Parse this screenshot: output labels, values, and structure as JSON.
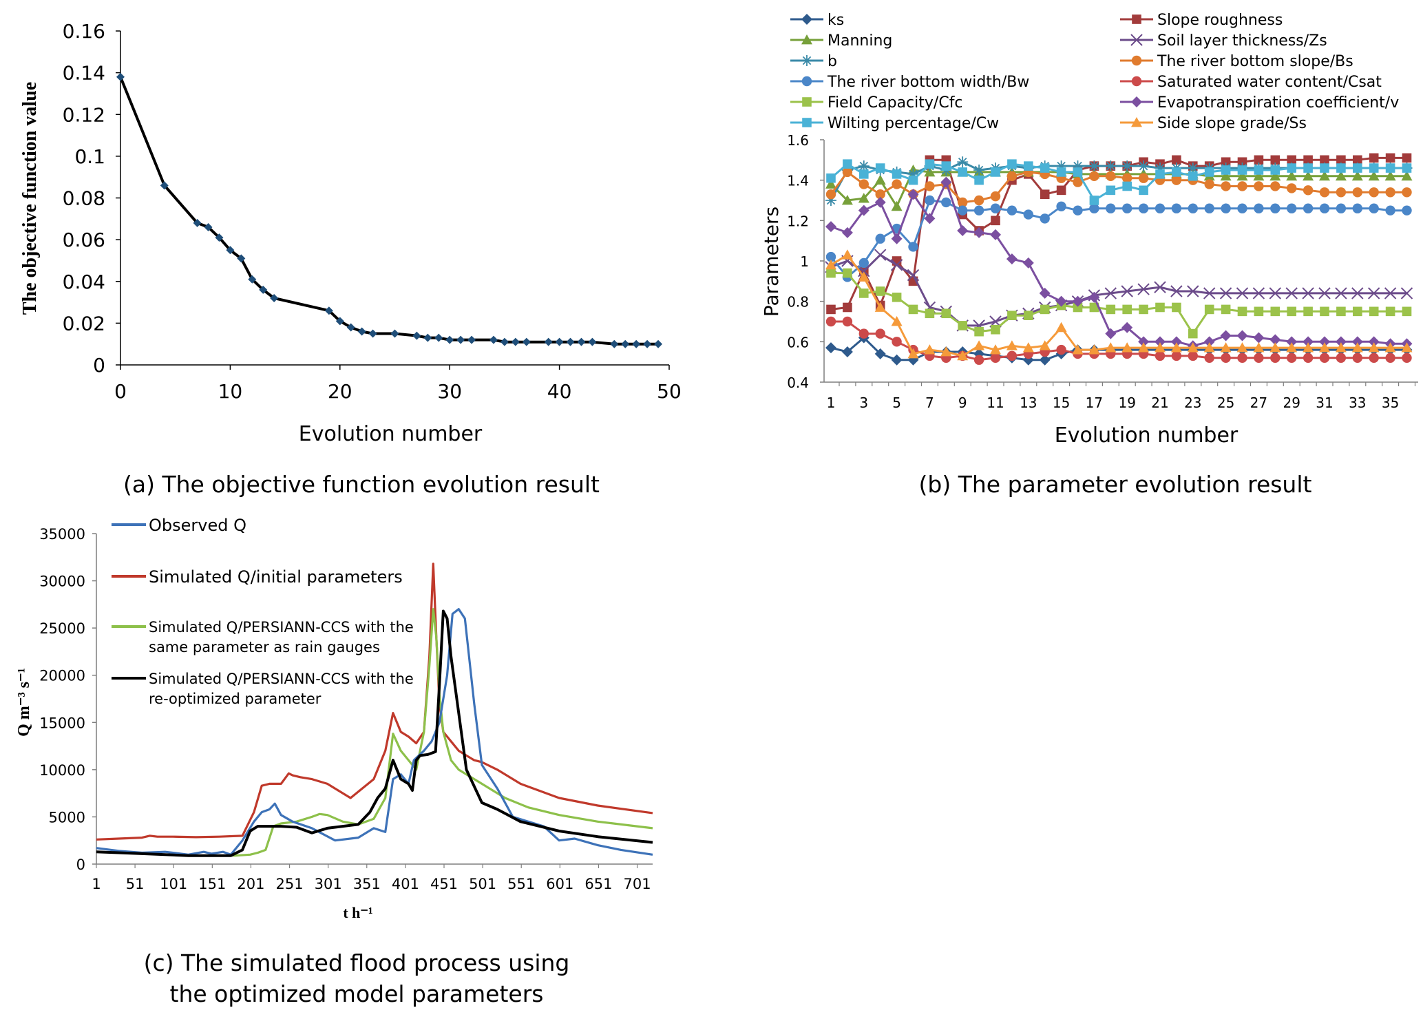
{
  "chart_data": [
    {
      "id": "a",
      "type": "line",
      "caption": "(a) The objective function evolution result",
      "title": "",
      "xlabel": "Evolution number",
      "ylabel": "The objective function value",
      "xlim": [
        0,
        50
      ],
      "ylim": [
        0,
        0.16
      ],
      "xticks": [
        "0",
        "10",
        "20",
        "30",
        "40",
        "50"
      ],
      "yticks": [
        "0",
        "0.02",
        "0.04",
        "0.06",
        "0.08",
        "0.1",
        "0.12",
        "0.14",
        "0.16"
      ],
      "color": "#000000",
      "marker_color": "#1f4e79",
      "series": [
        {
          "name": "Objective function",
          "x": [
            0,
            4,
            7,
            8,
            9,
            10,
            11,
            12,
            13,
            14,
            19,
            20,
            21,
            22,
            23,
            25,
            27,
            28,
            29,
            30,
            31,
            32,
            34,
            35,
            36,
            37,
            39,
            40,
            41,
            42,
            43,
            45,
            46,
            47,
            48,
            49
          ],
          "values": [
            0.138,
            0.086,
            0.068,
            0.066,
            0.061,
            0.055,
            0.051,
            0.041,
            0.036,
            0.032,
            0.026,
            0.021,
            0.018,
            0.016,
            0.015,
            0.015,
            0.014,
            0.013,
            0.013,
            0.012,
            0.012,
            0.012,
            0.012,
            0.011,
            0.011,
            0.011,
            0.011,
            0.011,
            0.011,
            0.011,
            0.011,
            0.01,
            0.01,
            0.01,
            0.01,
            0.01
          ]
        }
      ]
    },
    {
      "id": "b",
      "type": "line",
      "caption": "(b) The parameter evolution result",
      "title": "",
      "xlabel": "Evolution number",
      "ylabel": "Parameters",
      "xlim": [
        1,
        36
      ],
      "ylim": [
        0.4,
        1.6
      ],
      "xticks": [
        "1",
        "3",
        "5",
        "7",
        "9",
        "11",
        "13",
        "15",
        "17",
        "19",
        "21",
        "23",
        "25",
        "27",
        "29",
        "31",
        "33",
        "35"
      ],
      "yticks": [
        "0.4",
        "0.6",
        "0.8",
        "1",
        "1.2",
        "1.4",
        "1.6"
      ],
      "series": [
        {
          "name": "ks",
          "color": "#2e5a8c",
          "marker": "diamond",
          "values": [
            0.57,
            0.55,
            0.62,
            0.54,
            0.51,
            0.51,
            0.55,
            0.55,
            0.55,
            0.54,
            0.53,
            0.52,
            0.51,
            0.51,
            0.54,
            0.56,
            0.56,
            0.56,
            0.56,
            0.56,
            0.56,
            0.56,
            0.56,
            0.56,
            0.56,
            0.56,
            0.56,
            0.56,
            0.56,
            0.56,
            0.56,
            0.56,
            0.56,
            0.56,
            0.56,
            0.56
          ]
        },
        {
          "name": "Slope roughness",
          "color": "#a23b3b",
          "marker": "square",
          "values": [
            0.76,
            0.77,
            0.95,
            0.78,
            1.0,
            0.9,
            1.5,
            1.5,
            1.23,
            1.15,
            1.2,
            1.4,
            1.43,
            1.33,
            1.35,
            1.45,
            1.47,
            1.47,
            1.47,
            1.49,
            1.48,
            1.5,
            1.47,
            1.47,
            1.49,
            1.49,
            1.5,
            1.5,
            1.5,
            1.5,
            1.5,
            1.5,
            1.5,
            1.51,
            1.51,
            1.51
          ]
        },
        {
          "name": "Manning",
          "color": "#77a03a",
          "marker": "triangle",
          "values": [
            1.38,
            1.3,
            1.31,
            1.4,
            1.27,
            1.45,
            1.44,
            1.44,
            1.44,
            1.44,
            1.44,
            1.44,
            1.44,
            1.44,
            1.44,
            1.43,
            1.43,
            1.43,
            1.43,
            1.43,
            1.43,
            1.43,
            1.43,
            1.42,
            1.42,
            1.42,
            1.42,
            1.42,
            1.42,
            1.42,
            1.42,
            1.42,
            1.42,
            1.42,
            1.42,
            1.42
          ]
        },
        {
          "name": "Soil layer thickness/Zs",
          "color": "#6b4b8a",
          "marker": "x",
          "values": [
            0.97,
            1.0,
            0.95,
            1.03,
            0.98,
            0.93,
            0.77,
            0.75,
            0.68,
            0.68,
            0.7,
            0.73,
            0.74,
            0.77,
            0.78,
            0.8,
            0.83,
            0.84,
            0.85,
            0.86,
            0.87,
            0.85,
            0.85,
            0.84,
            0.84,
            0.84,
            0.84,
            0.84,
            0.84,
            0.84,
            0.84,
            0.84,
            0.84,
            0.84,
            0.84,
            0.84
          ]
        },
        {
          "name": "b",
          "color": "#3a8aa8",
          "marker": "star",
          "values": [
            1.3,
            1.45,
            1.47,
            1.45,
            1.44,
            1.43,
            1.47,
            1.45,
            1.49,
            1.45,
            1.46,
            1.47,
            1.46,
            1.47,
            1.47,
            1.47,
            1.47,
            1.47,
            1.47,
            1.47,
            1.46,
            1.46,
            1.46,
            1.46,
            1.46,
            1.46,
            1.46,
            1.46,
            1.46,
            1.46,
            1.46,
            1.46,
            1.46,
            1.46,
            1.46,
            1.46
          ]
        },
        {
          "name": "The river bottom slope/Bs",
          "color": "#e07b2e",
          "marker": "circle",
          "values": [
            1.33,
            1.44,
            1.38,
            1.33,
            1.38,
            1.33,
            1.37,
            1.38,
            1.29,
            1.3,
            1.32,
            1.42,
            1.44,
            1.43,
            1.41,
            1.39,
            1.42,
            1.42,
            1.41,
            1.41,
            1.4,
            1.4,
            1.4,
            1.38,
            1.37,
            1.37,
            1.37,
            1.37,
            1.36,
            1.35,
            1.34,
            1.34,
            1.34,
            1.34,
            1.34,
            1.34
          ]
        },
        {
          "name": "The river bottom width/Bw",
          "color": "#4a86c8",
          "marker": "circle",
          "values": [
            1.02,
            0.92,
            0.99,
            1.11,
            1.16,
            1.07,
            1.3,
            1.29,
            1.25,
            1.25,
            1.26,
            1.25,
            1.23,
            1.21,
            1.27,
            1.25,
            1.26,
            1.26,
            1.26,
            1.26,
            1.26,
            1.26,
            1.26,
            1.26,
            1.26,
            1.26,
            1.26,
            1.26,
            1.26,
            1.26,
            1.26,
            1.26,
            1.26,
            1.26,
            1.25,
            1.25
          ]
        },
        {
          "name": "Saturated water content/Csat",
          "color": "#cc4a4a",
          "marker": "circle",
          "values": [
            0.7,
            0.7,
            0.64,
            0.64,
            0.6,
            0.56,
            0.53,
            0.52,
            0.53,
            0.51,
            0.52,
            0.53,
            0.54,
            0.55,
            0.56,
            0.54,
            0.54,
            0.54,
            0.54,
            0.54,
            0.53,
            0.53,
            0.53,
            0.52,
            0.52,
            0.52,
            0.52,
            0.52,
            0.52,
            0.52,
            0.52,
            0.52,
            0.52,
            0.52,
            0.52,
            0.52
          ]
        },
        {
          "name": "Field Capacity/Cfc",
          "color": "#9bc24a",
          "marker": "square",
          "values": [
            0.94,
            0.94,
            0.84,
            0.85,
            0.82,
            0.76,
            0.74,
            0.74,
            0.68,
            0.65,
            0.66,
            0.73,
            0.73,
            0.76,
            0.78,
            0.77,
            0.77,
            0.76,
            0.76,
            0.76,
            0.77,
            0.77,
            0.64,
            0.76,
            0.76,
            0.75,
            0.75,
            0.75,
            0.75,
            0.75,
            0.75,
            0.75,
            0.75,
            0.75,
            0.75,
            0.75
          ]
        },
        {
          "name": "Evapotranspiration coefficient/v",
          "color": "#7b4fa0",
          "marker": "diamond",
          "values": [
            1.17,
            1.14,
            1.25,
            1.29,
            1.11,
            1.33,
            1.21,
            1.39,
            1.15,
            1.14,
            1.13,
            1.01,
            0.99,
            0.84,
            0.8,
            0.8,
            0.82,
            0.64,
            0.67,
            0.6,
            0.6,
            0.6,
            0.58,
            0.6,
            0.63,
            0.63,
            0.62,
            0.61,
            0.6,
            0.6,
            0.6,
            0.6,
            0.6,
            0.6,
            0.59,
            0.59
          ]
        },
        {
          "name": "Wilting percentage/Cw",
          "color": "#4ab2d6",
          "marker": "square",
          "values": [
            1.41,
            1.48,
            1.43,
            1.46,
            1.43,
            1.4,
            1.48,
            1.47,
            1.44,
            1.4,
            1.44,
            1.48,
            1.47,
            1.46,
            1.44,
            1.44,
            1.3,
            1.35,
            1.37,
            1.35,
            1.43,
            1.44,
            1.42,
            1.44,
            1.45,
            1.45,
            1.45,
            1.45,
            1.46,
            1.46,
            1.46,
            1.46,
            1.46,
            1.46,
            1.46,
            1.46
          ]
        },
        {
          "name": "Side slope grade/Ss",
          "color": "#f59a3a",
          "marker": "triangle",
          "values": [
            0.98,
            1.03,
            0.92,
            0.77,
            0.7,
            0.54,
            0.56,
            0.55,
            0.53,
            0.58,
            0.56,
            0.58,
            0.57,
            0.58,
            0.67,
            0.56,
            0.56,
            0.57,
            0.57,
            0.57,
            0.57,
            0.57,
            0.57,
            0.57,
            0.57,
            0.57,
            0.57,
            0.57,
            0.57,
            0.57,
            0.57,
            0.57,
            0.57,
            0.57,
            0.57,
            0.57
          ]
        }
      ]
    },
    {
      "id": "c",
      "type": "line",
      "caption": "(c) The simulated flood process using the optimized model parameters",
      "caption_line1": "(c) The simulated flood process using",
      "caption_line2": "the optimized model parameters",
      "title": "",
      "xlabel": "t h⁻¹",
      "ylabel": "Q m⁻³ s⁻¹",
      "xlim": [
        1,
        721
      ],
      "ylim": [
        0,
        35000
      ],
      "xticks": [
        "1",
        "51",
        "101",
        "151",
        "201",
        "251",
        "301",
        "351",
        "401",
        "451",
        "501",
        "551",
        "601",
        "651",
        "701"
      ],
      "yticks": [
        "0",
        "5000",
        "10000",
        "15000",
        "20000",
        "25000",
        "30000",
        "35000"
      ],
      "series": [
        {
          "name": "Observed Q",
          "color": "#3d72b8",
          "x": [
            1,
            30,
            60,
            90,
            120,
            140,
            150,
            165,
            175,
            190,
            205,
            215,
            225,
            232,
            240,
            255,
            280,
            310,
            340,
            360,
            375,
            385,
            395,
            405,
            412,
            425,
            435,
            445,
            455,
            462,
            470,
            478,
            490,
            500,
            520,
            540,
            560,
            580,
            600,
            620,
            650,
            680,
            721
          ],
          "values": [
            1700,
            1400,
            1200,
            1300,
            1000,
            1300,
            1100,
            1300,
            1000,
            2500,
            4500,
            5500,
            5800,
            6400,
            5200,
            4500,
            3800,
            2500,
            2800,
            3800,
            3400,
            9000,
            9500,
            8500,
            11000,
            12000,
            13000,
            15000,
            20000,
            26500,
            27000,
            26000,
            17000,
            10500,
            8000,
            5000,
            4500,
            4000,
            2500,
            2700,
            2000,
            1500,
            1000
          ]
        },
        {
          "name": "Simulated Q/initial parameters",
          "color": "#c0392b",
          "x": [
            1,
            30,
            60,
            70,
            80,
            100,
            130,
            160,
            190,
            205,
            215,
            225,
            240,
            250,
            255,
            265,
            280,
            300,
            330,
            360,
            375,
            385,
            395,
            405,
            415,
            425,
            432,
            437,
            441,
            445,
            450,
            460,
            470,
            480,
            490,
            500,
            520,
            550,
            600,
            650,
            721
          ],
          "values": [
            2600,
            2700,
            2800,
            3000,
            2900,
            2900,
            2850,
            2900,
            3000,
            5500,
            8300,
            8500,
            8500,
            9600,
            9400,
            9200,
            9000,
            8500,
            7000,
            9000,
            12000,
            16000,
            14000,
            13500,
            12800,
            14000,
            22000,
            31800,
            24000,
            17000,
            14000,
            13000,
            12000,
            11500,
            11000,
            10800,
            10000,
            8500,
            7000,
            6200,
            5400
          ]
        },
        {
          "name": "Simulated Q/PERSIANN-CCS with the same parameter as rain gauges",
          "color": "#8dc04a",
          "x": [
            1,
            30,
            60,
            90,
            120,
            150,
            180,
            200,
            210,
            220,
            230,
            240,
            260,
            280,
            290,
            300,
            320,
            340,
            360,
            375,
            385,
            395,
            405,
            415,
            425,
            432,
            437,
            441,
            445,
            450,
            460,
            470,
            480,
            500,
            530,
            560,
            600,
            650,
            721
          ],
          "values": [
            1300,
            1200,
            1100,
            1000,
            900,
            900,
            900,
            1000,
            1200,
            1500,
            4000,
            4300,
            4500,
            5000,
            5300,
            5200,
            4500,
            4200,
            4800,
            7000,
            13800,
            12000,
            11000,
            10000,
            14000,
            21000,
            27000,
            24000,
            18000,
            14000,
            11000,
            10000,
            9500,
            8500,
            7000,
            6000,
            5200,
            4500,
            3800
          ]
        },
        {
          "name": "Simulated Q/PERSIANN-CCS with the re-optimized parameter",
          "color": "#000000",
          "x": [
            1,
            30,
            60,
            90,
            120,
            150,
            175,
            190,
            200,
            210,
            220,
            240,
            260,
            280,
            300,
            320,
            340,
            355,
            365,
            375,
            385,
            395,
            405,
            410,
            415,
            420,
            430,
            440,
            445,
            450,
            455,
            460,
            470,
            480,
            500,
            520,
            550,
            600,
            650,
            721
          ],
          "values": [
            1300,
            1200,
            1100,
            1000,
            900,
            900,
            900,
            1500,
            3500,
            4000,
            4000,
            4000,
            3900,
            3300,
            3800,
            4000,
            4200,
            5500,
            7000,
            8000,
            11000,
            9000,
            8500,
            7800,
            11000,
            11500,
            11600,
            11900,
            19000,
            26800,
            26000,
            22000,
            16000,
            10000,
            6500,
            5800,
            4500,
            3500,
            2900,
            2300
          ]
        }
      ]
    }
  ]
}
